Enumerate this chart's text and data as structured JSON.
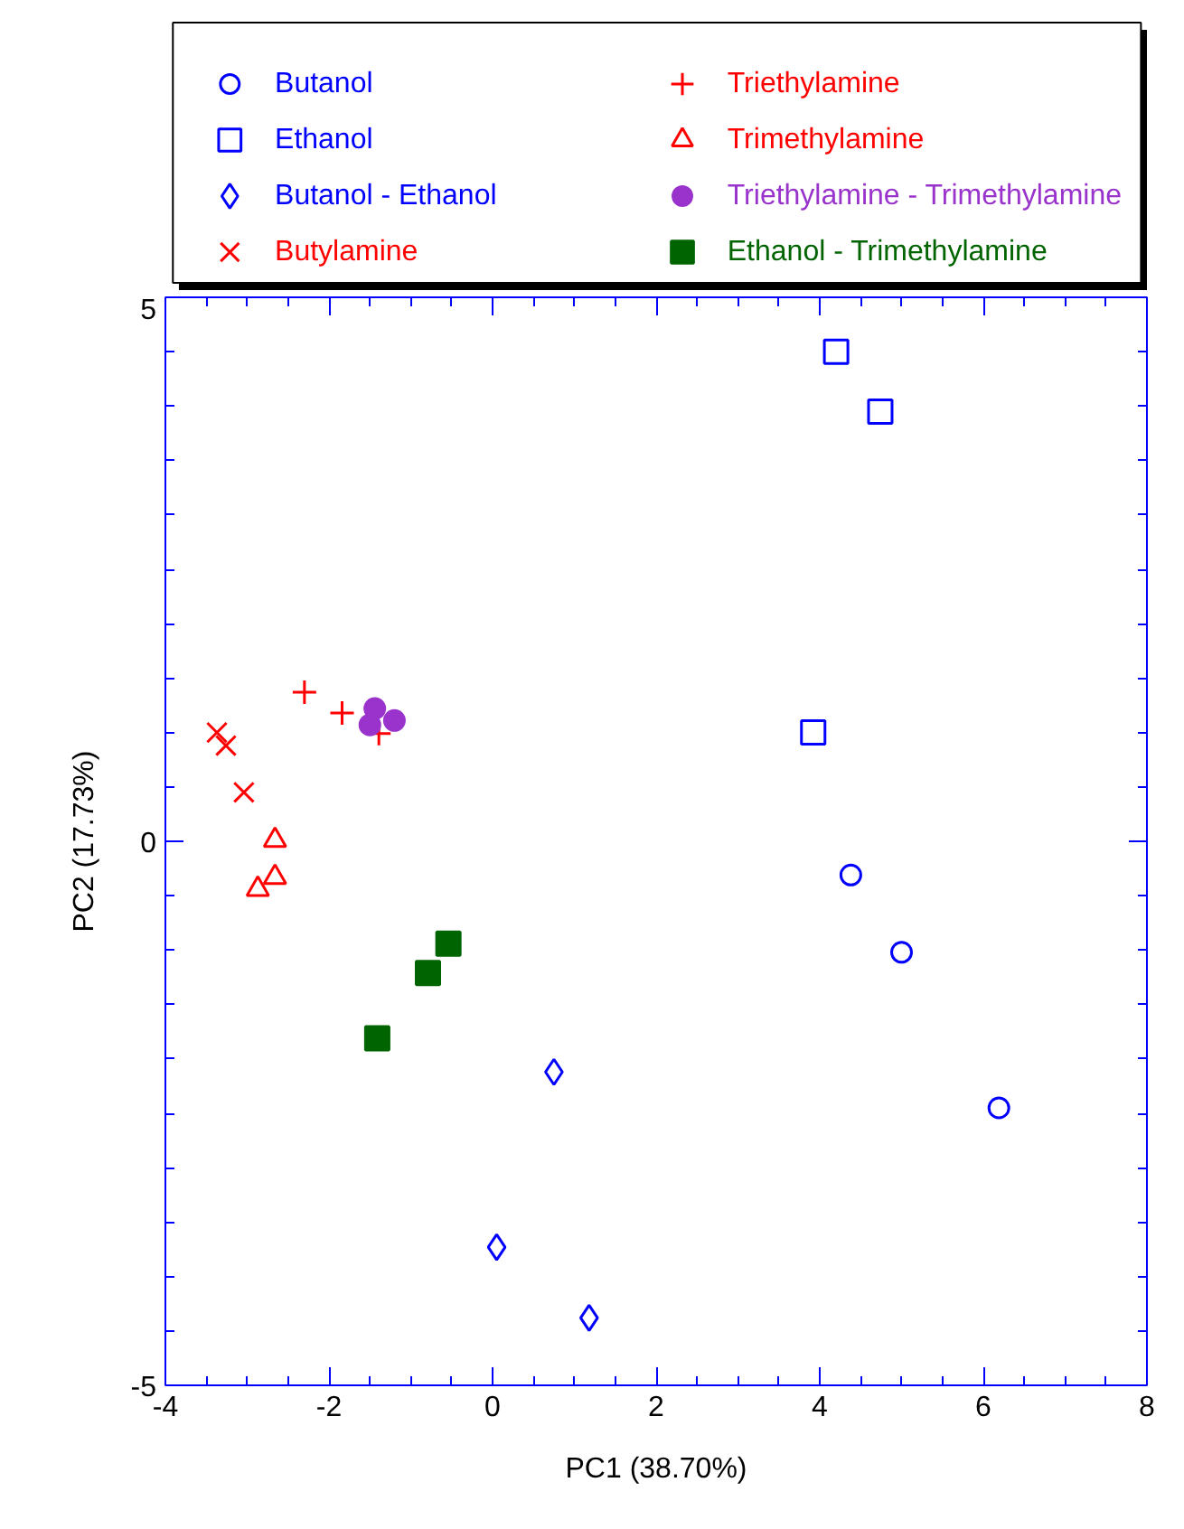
{
  "chart_data": {
    "type": "scatter",
    "xlabel": "PC1 (38.70%)",
    "ylabel": "PC2 (17.73%)",
    "xlim": [
      -4,
      8
    ],
    "ylim": [
      -5,
      5
    ],
    "xticks": [
      -4,
      -2,
      0,
      2,
      4,
      6,
      8
    ],
    "yticks": [
      -5,
      0,
      5
    ],
    "grid": false,
    "legend": "top",
    "series": [
      {
        "name": "Butanol",
        "color": "#0000ff",
        "marker": "circle",
        "x": [
          4.38,
          5.0,
          6.19
        ],
        "values": [
          -0.31,
          -1.02,
          -2.45
        ]
      },
      {
        "name": "Ethanol",
        "color": "#0000ff",
        "marker": "square",
        "x": [
          4.2,
          4.74,
          3.92
        ],
        "values": [
          4.5,
          3.95,
          1.0
        ]
      },
      {
        "name": "Butanol - Ethanol",
        "color": "#0000ff",
        "marker": "diamond",
        "x": [
          0.75,
          0.05,
          1.18
        ],
        "values": [
          -2.12,
          -3.73,
          -4.38
        ]
      },
      {
        "name": "Butylamine",
        "color": "#ff0000",
        "marker": "x",
        "x": [
          -3.37,
          -3.26,
          -3.04
        ],
        "values": [
          1.0,
          0.88,
          0.45
        ]
      },
      {
        "name": "Triethylamine",
        "color": "#ff0000",
        "marker": "cross",
        "x": [
          -2.3,
          -1.84,
          -1.39
        ],
        "values": [
          1.37,
          1.18,
          0.99
        ]
      },
      {
        "name": "Trimethylamine",
        "color": "#ff0000",
        "marker": "triangle",
        "x": [
          -2.66,
          -2.66,
          -2.87
        ],
        "values": [
          0.01,
          -0.33,
          -0.44
        ]
      },
      {
        "name": "Triethylamine - Trimethylamine",
        "color": "#9933cc",
        "marker": "circle",
        "x": [
          -1.44,
          -1.5,
          -1.2
        ],
        "values": [
          1.22,
          1.07,
          1.11
        ]
      },
      {
        "name": "Ethanol - Trimethylamine",
        "color": "#006400",
        "marker": "square",
        "x": [
          -0.54,
          -0.79,
          -1.41
        ],
        "values": [
          -0.94,
          -1.21,
          -1.81
        ]
      }
    ]
  }
}
